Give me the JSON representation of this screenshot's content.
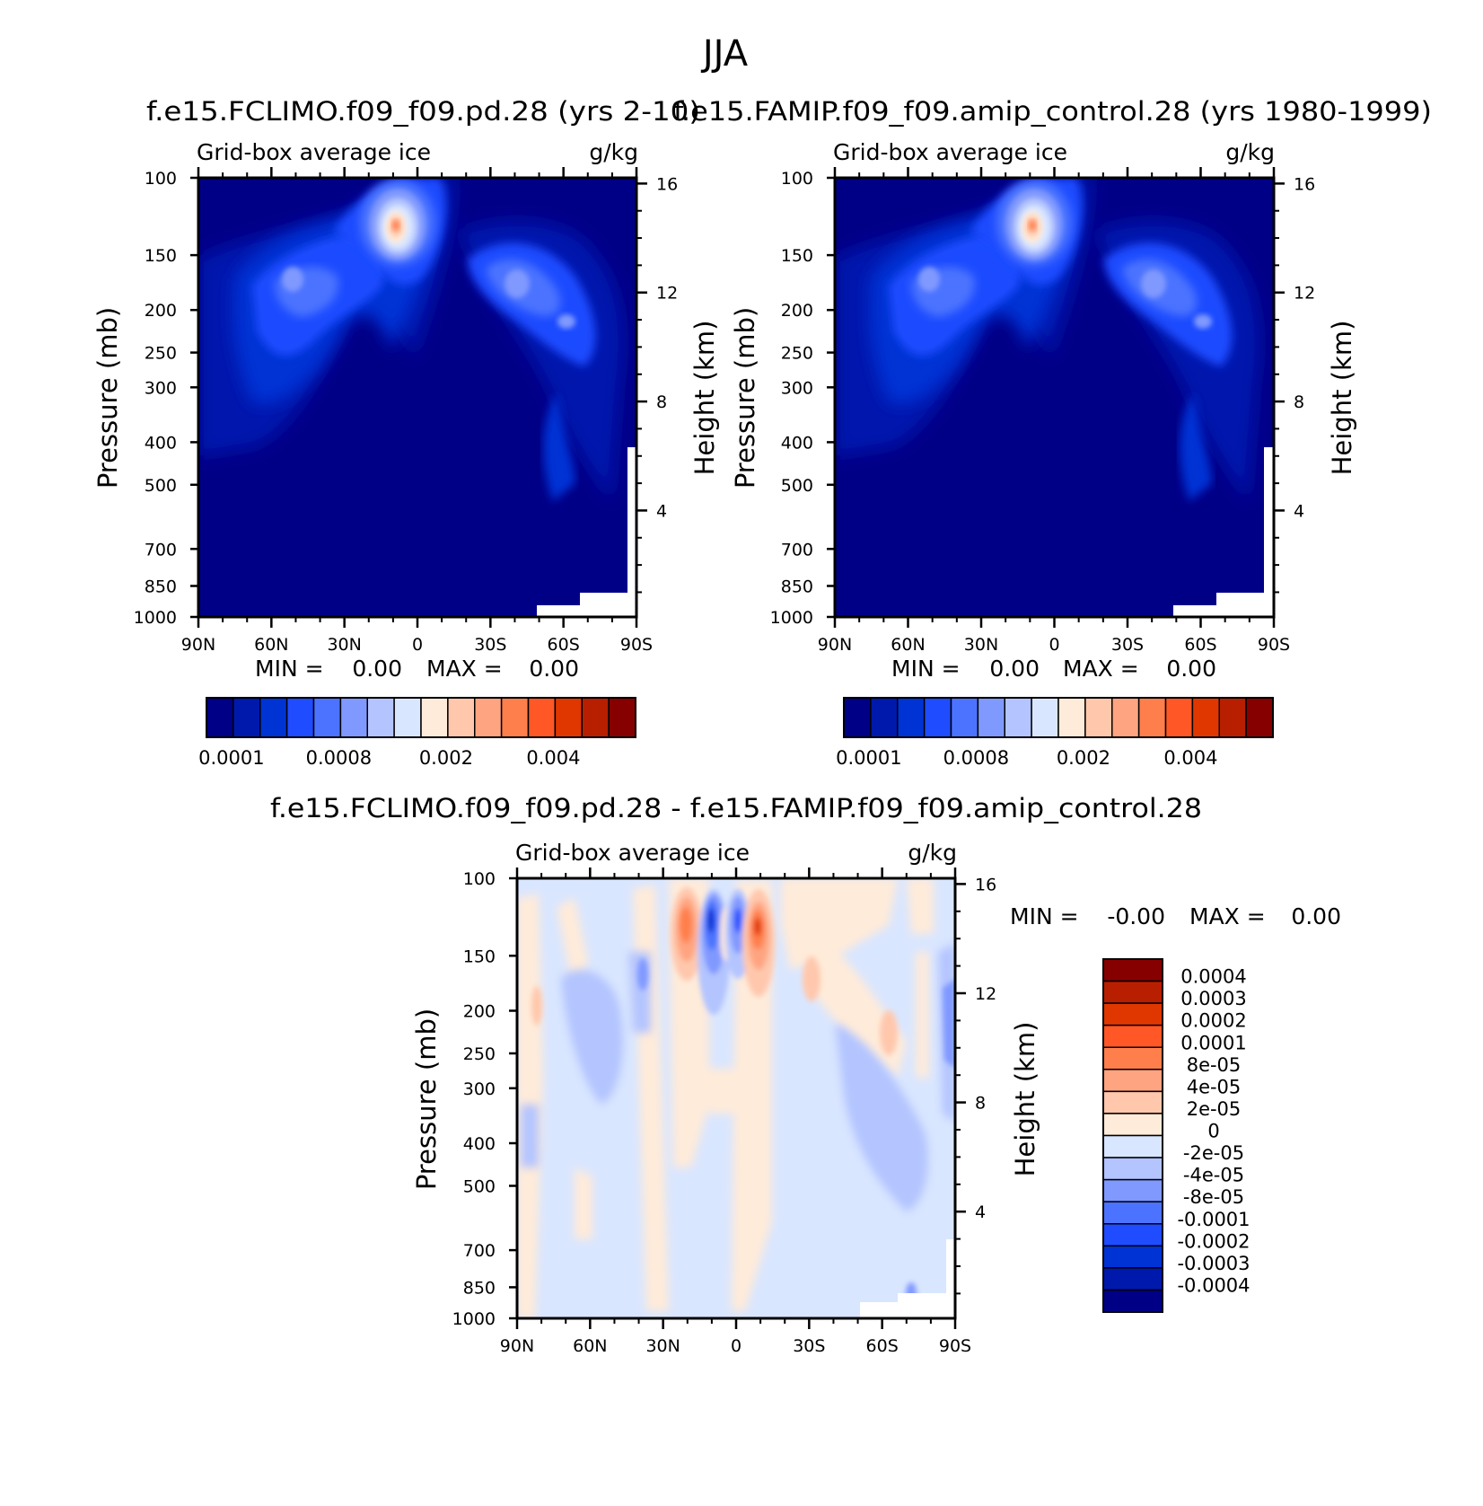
{
  "figure": {
    "title": "JJA"
  },
  "colors": {
    "abs_palette": [
      "#000087",
      "#0019ad",
      "#0033d4",
      "#1f4cff",
      "#4c73ff",
      "#8099ff",
      "#b3c4ff",
      "#d9e6ff",
      "#ffebd9",
      "#ffc8ad",
      "#ffa480",
      "#ff7f4c",
      "#ff5726",
      "#e03700",
      "#b81f00",
      "#870000"
    ],
    "diff_palette": [
      "#000087",
      "#0019ad",
      "#0033d4",
      "#1f4cff",
      "#4c73ff",
      "#8099ff",
      "#b3c4ff",
      "#d9e6ff",
      "#ffebd9",
      "#ffc8ad",
      "#ffa480",
      "#ff7f4c",
      "#ff5726",
      "#e03700",
      "#b81f00",
      "#870000"
    ]
  },
  "chart_data": [
    {
      "type": "heatmap",
      "title": "f.e15.FCLIMO.f09_f09.pd.28 (yrs 2-10)",
      "left_label": "Grid-box average ice",
      "right_label": "g/kg",
      "xlabel": "",
      "ylabel": "Pressure (mb)",
      "y2label": "Height (km)",
      "x_ticks": [
        "90N",
        "60N",
        "30N",
        "0",
        "30S",
        "60S",
        "90S"
      ],
      "x_range": [
        90,
        -90
      ],
      "y_ticks": [
        "100",
        "150",
        "200",
        "250",
        "300",
        "400",
        "500",
        "700",
        "850",
        "1000"
      ],
      "y_range": [
        100,
        1000
      ],
      "y2_ticks": [
        "16",
        "12",
        "8",
        "4"
      ],
      "stats": {
        "min_label": "MIN =",
        "min_value": "0.00",
        "max_label": "MAX =",
        "max_value": "0.00"
      },
      "colorbar_ticks": [
        "0.0001",
        "0.0008",
        "0.002",
        "0.004"
      ],
      "features": [
        {
          "lat": 10,
          "p": 200,
          "value": 0.0045,
          "desc": "tropical upper-tropospheric ice maximum"
        },
        {
          "lat": 50,
          "p": 320,
          "value": 0.0006,
          "desc": "NH midlatitude maximum"
        },
        {
          "lat": -42,
          "p": 330,
          "value": 0.0008,
          "desc": "SH midlatitude maximum"
        }
      ]
    },
    {
      "type": "heatmap",
      "title": "f.e15.FAMIP.f09_f09.amip_control.28 (yrs 1980-1999)",
      "left_label": "Grid-box average ice",
      "right_label": "g/kg",
      "xlabel": "",
      "ylabel": "Pressure (mb)",
      "y2label": "Height (km)",
      "x_ticks": [
        "90N",
        "60N",
        "30N",
        "0",
        "30S",
        "60S",
        "90S"
      ],
      "x_range": [
        90,
        -90
      ],
      "y_ticks": [
        "100",
        "150",
        "200",
        "250",
        "300",
        "400",
        "500",
        "700",
        "850",
        "1000"
      ],
      "y_range": [
        100,
        1000
      ],
      "y2_ticks": [
        "16",
        "12",
        "8",
        "4"
      ],
      "stats": {
        "min_label": "MIN =",
        "min_value": "0.00",
        "max_label": "MAX =",
        "max_value": "0.00"
      },
      "colorbar_ticks": [
        "0.0001",
        "0.0008",
        "0.002",
        "0.004"
      ],
      "features": [
        {
          "lat": 10,
          "p": 200,
          "value": 0.0042,
          "desc": "tropical upper-tropospheric ice maximum"
        },
        {
          "lat": 50,
          "p": 320,
          "value": 0.0006,
          "desc": "NH midlatitude maximum"
        },
        {
          "lat": -42,
          "p": 330,
          "value": 0.0008,
          "desc": "SH midlatitude maximum"
        }
      ]
    },
    {
      "type": "heatmap",
      "title": "f.e15.FCLIMO.f09_f09.pd.28 - f.e15.FAMIP.f09_f09.amip_control.28",
      "left_label": "Grid-box average ice",
      "right_label": "g/kg",
      "xlabel": "",
      "ylabel": "Pressure (mb)",
      "y2label": "Height (km)",
      "x_ticks": [
        "90N",
        "60N",
        "30N",
        "0",
        "30S",
        "60S",
        "90S"
      ],
      "x_range": [
        90,
        -90
      ],
      "y_ticks": [
        "100",
        "150",
        "200",
        "250",
        "300",
        "400",
        "500",
        "700",
        "850",
        "1000"
      ],
      "y_range": [
        100,
        1000
      ],
      "y2_ticks": [
        "16",
        "12",
        "8",
        "4"
      ],
      "stats": {
        "min_label": "MIN =",
        "min_value": "-0.00",
        "max_label": "MAX =",
        "max_value": "0.00"
      },
      "colorbar_levels": [
        "0.0004",
        "0.0003",
        "0.0002",
        "0.0001",
        "8e-05",
        "4e-05",
        "2e-05",
        "0",
        "-2e-05",
        "-4e-05",
        "-8e-05",
        "-0.0001",
        "-0.0002",
        "-0.0003",
        "-0.0004"
      ],
      "features": [
        {
          "lat": 20,
          "p": 220,
          "value": 0.0002,
          "desc": "positive difference"
        },
        {
          "lat": 11,
          "p": 200,
          "value": -0.0003,
          "desc": "negative difference"
        },
        {
          "lat": 2,
          "p": 200,
          "value": -0.0002,
          "desc": "negative difference"
        },
        {
          "lat": -5,
          "p": 200,
          "value": 0.0003,
          "desc": "positive difference"
        },
        {
          "lat": -28,
          "p": 320,
          "value": 4e-05,
          "desc": "weak positive"
        },
        {
          "lat": -58,
          "p": 420,
          "value": 8e-05,
          "desc": "weak positive"
        },
        {
          "lat": 46,
          "p": 420,
          "value": -4e-05,
          "desc": "weak negative"
        }
      ]
    }
  ]
}
